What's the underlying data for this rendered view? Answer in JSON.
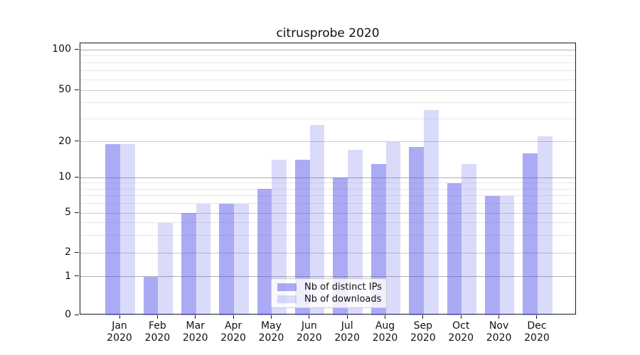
{
  "title": "citrusprobe 2020",
  "chart_data": {
    "type": "bar",
    "title": "citrusprobe 2020",
    "categories": [
      "Jan",
      "Feb",
      "Mar",
      "Apr",
      "May",
      "Jun",
      "Jul",
      "Aug",
      "Sep",
      "Oct",
      "Nov",
      "Dec"
    ],
    "year": "2020",
    "series": [
      {
        "name": "Nb of distinct IPs",
        "values": [
          19,
          1,
          5,
          6,
          8,
          14,
          10,
          13,
          18,
          9,
          7,
          16
        ]
      },
      {
        "name": "Nb of downloads",
        "values": [
          19,
          4,
          6,
          6,
          14,
          27,
          17,
          20,
          35,
          13,
          7,
          22
        ]
      }
    ],
    "series_colors": [
      "rgba(80,80,235,0.48)",
      "rgba(80,80,235,0.21)"
    ],
    "xlabel": "",
    "ylabel": "",
    "yscale": "log above 1, linear segment 0-1",
    "yticks": [
      0,
      1,
      2,
      5,
      10,
      20,
      50,
      100
    ],
    "yticks_minor": [
      3,
      4,
      6,
      7,
      8,
      9,
      30,
      40,
      60,
      70,
      80,
      90
    ],
    "ylim": [
      0,
      112
    ],
    "grid": "horizontal, major and minor",
    "legend_position": "lower center"
  }
}
